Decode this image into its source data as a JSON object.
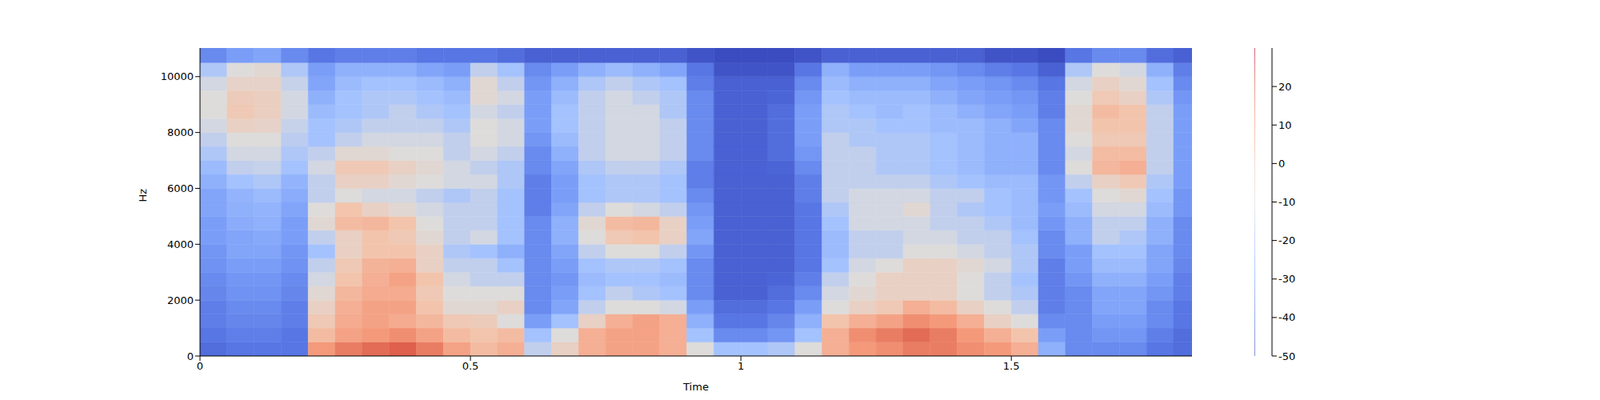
{
  "chart_data": {
    "type": "heatmap",
    "xlabel": "Time",
    "ylabel": "Hz",
    "color": "coolwarm",
    "xlim": [
      0,
      1.834
    ],
    "xticks": [
      0,
      0.5,
      1,
      1.5
    ],
    "ylim": [
      0,
      11025
    ],
    "yticks": [
      0,
      2000,
      4000,
      6000,
      8000,
      10000
    ],
    "colorbar_lim": [
      -50,
      30
    ],
    "colorbar_ticks": [
      -50,
      -40,
      -30,
      -20,
      -10,
      0,
      10,
      20
    ],
    "x_edges": [
      0,
      0.05,
      0.1,
      0.15,
      0.2,
      0.25,
      0.3,
      0.35,
      0.4,
      0.45,
      0.5,
      0.55,
      0.6,
      0.65,
      0.7,
      0.75,
      0.8,
      0.85,
      0.9,
      0.95,
      1.0,
      1.05,
      1.1,
      1.15,
      1.2,
      1.25,
      1.3,
      1.35,
      1.4,
      1.45,
      1.5,
      1.55,
      1.6,
      1.65,
      1.7,
      1.75,
      1.8,
      1.834
    ],
    "y_edges": [
      0,
      500,
      1000,
      1500,
      2000,
      2500,
      3000,
      3500,
      4000,
      4500,
      5000,
      5500,
      6000,
      6500,
      7000,
      7500,
      8000,
      8500,
      9000,
      9500,
      10000,
      10500,
      11025
    ],
    "values": [
      [
        -42,
        -40,
        -38,
        -38,
        -36,
        -35,
        -33,
        -32,
        -30,
        -30,
        -28,
        -28,
        -25,
        -22,
        -18,
        -15,
        -12,
        -10,
        -10,
        -12,
        -18,
        -35
      ],
      [
        -40,
        -38,
        -36,
        -35,
        -33,
        -32,
        -30,
        -28,
        -28,
        -26,
        -25,
        -24,
        -20,
        -15,
        -12,
        -10,
        -5,
        -2,
        -3,
        -6,
        -10,
        -30
      ],
      [
        -40,
        -38,
        -36,
        -35,
        -33,
        -32,
        -30,
        -28,
        -27,
        -25,
        -24,
        -22,
        -18,
        -14,
        -12,
        -10,
        -6,
        -4,
        -4,
        -6,
        -8,
        -28
      ],
      [
        -40,
        -40,
        -38,
        -38,
        -36,
        -35,
        -33,
        -32,
        -30,
        -30,
        -28,
        -26,
        -24,
        -20,
        -18,
        -16,
        -14,
        -12,
        -12,
        -14,
        -18,
        -35
      ],
      [
        10,
        2,
        -2,
        -5,
        -8,
        -12,
        -15,
        -20,
        -15,
        -8,
        -10,
        -15,
        -15,
        -12,
        -15,
        -20,
        -20,
        -22,
        -25,
        -28,
        -30,
        -40
      ],
      [
        15,
        8,
        6,
        5,
        3,
        0,
        -2,
        -5,
        -5,
        2,
        0,
        -10,
        -5,
        -2,
        -8,
        -15,
        -18,
        -20,
        -20,
        -22,
        -25,
        -38
      ],
      [
        18,
        10,
        8,
        8,
        6,
        5,
        4,
        0,
        0,
        3,
        -5,
        -12,
        -5,
        -2,
        -8,
        -12,
        -15,
        -18,
        -18,
        -20,
        -25,
        -38
      ],
      [
        20,
        12,
        6,
        8,
        6,
        8,
        5,
        0,
        -2,
        0,
        -8,
        -12,
        -8,
        -5,
        -10,
        -12,
        -15,
        -15,
        -18,
        -20,
        -25,
        -38
      ],
      [
        15,
        8,
        3,
        0,
        -2,
        0,
        -5,
        -5,
        -8,
        -10,
        -12,
        -15,
        -10,
        -8,
        -10,
        -12,
        -15,
        -18,
        -20,
        -22,
        -28,
        -40
      ],
      [
        8,
        2,
        -2,
        -8,
        -10,
        -12,
        -15,
        -18,
        -15,
        -15,
        -15,
        -18,
        -12,
        -12,
        -15,
        -15,
        -18,
        -20,
        -22,
        -25,
        -30,
        -40
      ],
      [
        2,
        0,
        -3,
        -8,
        -10,
        -15,
        -15,
        -20,
        -12,
        -15,
        -15,
        -15,
        -12,
        -15,
        -12,
        -10,
        -10,
        -12,
        -8,
        -8,
        -15,
        -40
      ],
      [
        5,
        2,
        -10,
        -5,
        -10,
        -15,
        -20,
        -25,
        -20,
        -20,
        -20,
        -20,
        -18,
        -18,
        -15,
        -12,
        -12,
        -15,
        -12,
        -15,
        -20,
        -42
      ],
      [
        -15,
        -20,
        -30,
        -35,
        -35,
        -35,
        -35,
        -35,
        -35,
        -35,
        -38,
        -38,
        -38,
        -35,
        -35,
        -32,
        -30,
        -30,
        -30,
        -32,
        -35,
        -45
      ],
      [
        -5,
        -10,
        -20,
        -28,
        -30,
        -32,
        -30,
        -28,
        -25,
        -25,
        -28,
        -30,
        -30,
        -28,
        -25,
        -22,
        -20,
        -20,
        -22,
        -25,
        -30,
        -45
      ],
      [
        5,
        5,
        -5,
        -15,
        -20,
        -22,
        -20,
        -15,
        -10,
        -8,
        -15,
        -20,
        -20,
        -18,
        -15,
        -15,
        -15,
        -15,
        -15,
        -18,
        -25,
        -45
      ],
      [
        8,
        8,
        5,
        -10,
        -15,
        -20,
        -18,
        -10,
        -2,
        2,
        -10,
        -18,
        -18,
        -15,
        -12,
        -12,
        -12,
        -12,
        -12,
        -15,
        -22,
        -45
      ],
      [
        8,
        8,
        8,
        -10,
        -18,
        -20,
        -18,
        -10,
        0,
        3,
        -12,
        -18,
        -18,
        -15,
        -12,
        -12,
        -12,
        -12,
        -15,
        -18,
        -25,
        -45
      ],
      [
        5,
        5,
        5,
        -12,
        -20,
        -22,
        -20,
        -15,
        -5,
        -5,
        -15,
        -20,
        -20,
        -18,
        -15,
        -15,
        -15,
        -18,
        -18,
        -20,
        -28,
        -45
      ],
      [
        -10,
        -20,
        -25,
        -30,
        -35,
        -35,
        -35,
        -32,
        -28,
        -30,
        -32,
        -35,
        -38,
        -38,
        -35,
        -35,
        -35,
        -35,
        -35,
        -38,
        -40,
        -48
      ],
      [
        -20,
        -35,
        -40,
        -42,
        -45,
        -45,
        -45,
        -45,
        -45,
        -45,
        -45,
        -45,
        -45,
        -45,
        -45,
        -45,
        -45,
        -45,
        -45,
        -45,
        -48,
        -50
      ],
      [
        -20,
        -35,
        -40,
        -42,
        -45,
        -45,
        -45,
        -45,
        -45,
        -45,
        -45,
        -45,
        -45,
        -45,
        -45,
        -45,
        -45,
        -45,
        -45,
        -45,
        -48,
        -50
      ],
      [
        -18,
        -32,
        -36,
        -40,
        -42,
        -44,
        -45,
        -45,
        -45,
        -45,
        -45,
        -45,
        -45,
        -44,
        -42,
        -42,
        -42,
        -42,
        -44,
        -45,
        -48,
        -50
      ],
      [
        -10,
        -20,
        -25,
        -30,
        -35,
        -38,
        -40,
        -40,
        -40,
        -40,
        -40,
        -38,
        -38,
        -35,
        -32,
        -30,
        -30,
        -30,
        -32,
        -35,
        -40,
        -48
      ],
      [
        5,
        5,
        0,
        -10,
        -12,
        -15,
        -20,
        -22,
        -22,
        -20,
        -18,
        -15,
        -15,
        -15,
        -15,
        -15,
        -18,
        -18,
        -20,
        -22,
        -25,
        -45
      ],
      [
        10,
        12,
        5,
        -5,
        -8,
        -10,
        -12,
        -15,
        -15,
        -12,
        -12,
        -12,
        -15,
        -15,
        -15,
        -18,
        -18,
        -20,
        -22,
        -25,
        -30,
        -45
      ],
      [
        12,
        15,
        8,
        -2,
        -5,
        -5,
        -10,
        -15,
        -15,
        -12,
        -12,
        -12,
        -15,
        -18,
        -18,
        -18,
        -20,
        -22,
        -22,
        -25,
        -30,
        -45
      ],
      [
        15,
        18,
        12,
        5,
        -5,
        -5,
        -5,
        -10,
        -12,
        -12,
        -8,
        -12,
        -15,
        -18,
        -18,
        -18,
        -20,
        -20,
        -22,
        -25,
        -30,
        -45
      ],
      [
        15,
        15,
        10,
        2,
        -5,
        -5,
        -5,
        -10,
        -12,
        -15,
        -15,
        -15,
        -18,
        -20,
        -20,
        -20,
        -22,
        -22,
        -25,
        -28,
        -32,
        -45
      ],
      [
        12,
        10,
        5,
        -5,
        -10,
        -10,
        -8,
        -12,
        -15,
        -15,
        -18,
        -15,
        -20,
        -22,
        -22,
        -22,
        -22,
        -25,
        -28,
        -30,
        -35,
        -45
      ],
      [
        10,
        5,
        -5,
        -10,
        -15,
        -15,
        -12,
        -15,
        -15,
        -18,
        -20,
        -20,
        -22,
        -25,
        -25,
        -25,
        -25,
        -28,
        -30,
        -32,
        -38,
        -48
      ],
      [
        5,
        0,
        -10,
        -15,
        -18,
        -20,
        -18,
        -18,
        -20,
        -22,
        -22,
        -22,
        -22,
        -25,
        -25,
        -25,
        -28,
        -30,
        -32,
        -35,
        -40,
        -48
      ],
      [
        -25,
        -30,
        -35,
        -38,
        -38,
        -38,
        -38,
        -35,
        -35,
        -32,
        -30,
        -32,
        -32,
        -35,
        -35,
        -35,
        -35,
        -38,
        -38,
        -40,
        -45,
        -50
      ],
      [
        -35,
        -35,
        -35,
        -35,
        -35,
        -32,
        -30,
        -30,
        -25,
        -25,
        -22,
        -20,
        -15,
        -10,
        -12,
        -10,
        -8,
        -8,
        -10,
        -12,
        -18,
        -40
      ],
      [
        -35,
        -32,
        -30,
        -28,
        -28,
        -25,
        -22,
        -20,
        -15,
        -15,
        -12,
        -10,
        -5,
        3,
        2,
        -2,
        0,
        2,
        -2,
        -5,
        -10,
        -35
      ],
      [
        -35,
        -32,
        -30,
        -28,
        -28,
        -25,
        -22,
        -20,
        -18,
        -15,
        -12,
        -8,
        -2,
        5,
        2,
        -2,
        0,
        0,
        -5,
        -8,
        -12,
        -35
      ],
      [
        -40,
        -38,
        -35,
        -35,
        -32,
        -30,
        -28,
        -28,
        -25,
        -25,
        -22,
        -20,
        -18,
        -15,
        -15,
        -15,
        -15,
        -15,
        -18,
        -20,
        -25,
        -42
      ],
      [
        -42,
        -42,
        -40,
        -40,
        -38,
        -38,
        -36,
        -35,
        -35,
        -35,
        -32,
        -32,
        -30,
        -30,
        -30,
        -30,
        -30,
        -30,
        -32,
        -35,
        -38,
        -45
      ]
    ]
  }
}
